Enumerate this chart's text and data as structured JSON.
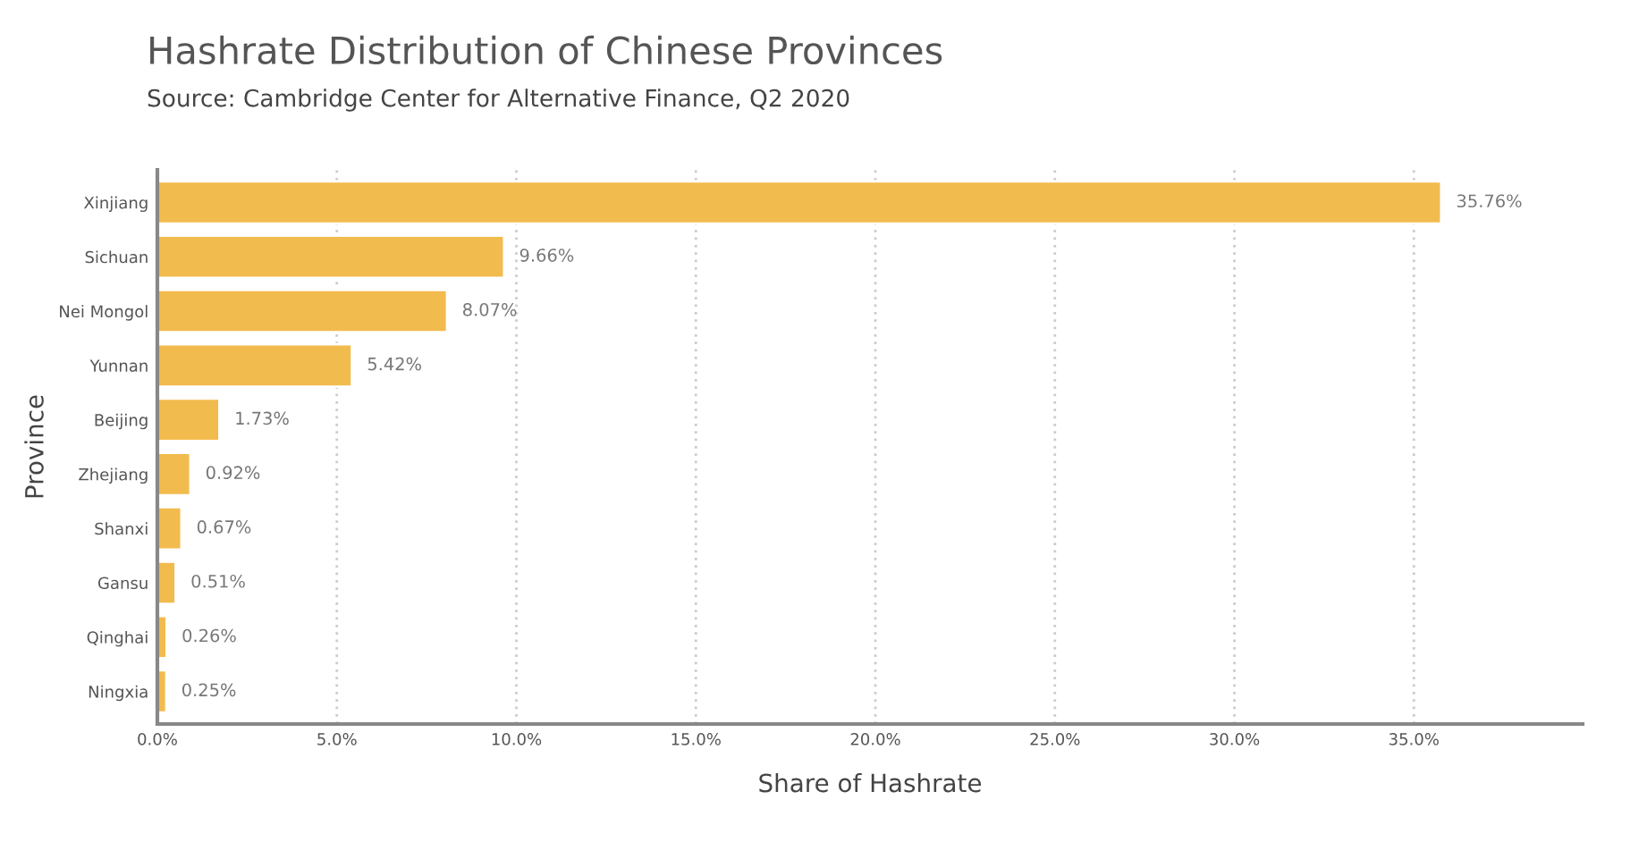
{
  "chart_data": {
    "type": "bar",
    "orientation": "horizontal",
    "title": "Hashrate Distribution of Chinese Provinces",
    "subtitle": "Source: Cambridge Center for Alternative Finance, Q2 2020",
    "xlabel": "Share of Hashrate",
    "ylabel": "Province",
    "categories": [
      "Xinjiang",
      "Sichuan",
      "Nei Mongol",
      "Yunnan",
      "Beijing",
      "Zhejiang",
      "Shanxi",
      "Gansu",
      "Qinghai",
      "Ningxia"
    ],
    "values": [
      35.76,
      9.66,
      8.07,
      5.42,
      1.73,
      0.92,
      0.67,
      0.51,
      0.26,
      0.25
    ],
    "value_labels": [
      "35.76%",
      "9.66%",
      "8.07%",
      "5.42%",
      "1.73%",
      "0.92%",
      "0.67%",
      "0.51%",
      "0.26%",
      "0.25%"
    ],
    "color": "#f2bb4e",
    "xlim": [
      0,
      39.7
    ],
    "xticks": [
      {
        "value": 0,
        "label": "0.0%"
      },
      {
        "value": 5,
        "label": "5.0%"
      },
      {
        "value": 10,
        "label": "10.0%"
      },
      {
        "value": 15,
        "label": "15.0%"
      },
      {
        "value": 20,
        "label": "20.0%"
      },
      {
        "value": 25,
        "label": "25.0%"
      },
      {
        "value": 30,
        "label": "30.0%"
      },
      {
        "value": 35,
        "label": "35.0%"
      }
    ],
    "grid": "x"
  }
}
